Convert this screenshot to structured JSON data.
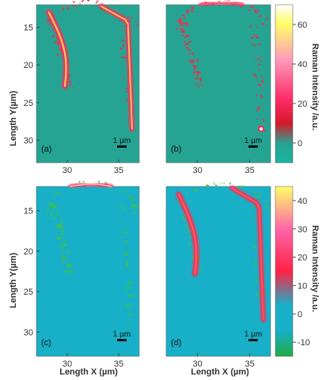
{
  "chart_data": [
    {
      "type": "heatmap",
      "panels": [
        {
          "label": "(a)",
          "scale_bar": "1 µm",
          "features": "two curved arcs of high intensity"
        },
        {
          "label": "(b)",
          "scale_bar": "1 µm",
          "features": "short arc at top, speckle along outline"
        }
      ],
      "xlabel": "Length X (µm)",
      "ylabel": "Length Y(µm)",
      "x_ticks": [
        "30",
        "35"
      ],
      "y_ticks": [
        "15",
        "20",
        "25",
        "30"
      ],
      "xlim": [
        27,
        37
      ],
      "ylim": [
        33,
        12
      ],
      "colorbar": {
        "label": "Raman Intensity /a.u.",
        "ticks": [
          "60",
          "40",
          "20",
          "0"
        ],
        "range": [
          -10,
          70
        ]
      }
    },
    {
      "type": "heatmap",
      "panels": [
        {
          "label": "(c)",
          "scale_bar": "1 µm",
          "features": "short arc at top, speckle along outline"
        },
        {
          "label": "(d)",
          "scale_bar": "1 µm",
          "features": "two curved arcs of high intensity"
        }
      ],
      "xlabel": "Length X (µm)",
      "ylabel": "Length Y(µm)",
      "x_ticks": [
        "30",
        "35"
      ],
      "y_ticks": [
        "15",
        "20",
        "25",
        "30"
      ],
      "xlim": [
        27,
        37
      ],
      "ylim": [
        33,
        12
      ],
      "colorbar": {
        "label": "Raman Intensity /a.u.",
        "ticks": [
          "40",
          "30",
          "20",
          "10",
          "0",
          "-10"
        ],
        "range": [
          -15,
          45
        ]
      }
    }
  ],
  "colors": {
    "bg_top": "#26a493",
    "bg_bottom": "#18b0c8",
    "hot": "#ff2a55",
    "peak": "#ffee66",
    "speckle": "#e8334a",
    "green": "#3ec04a"
  }
}
